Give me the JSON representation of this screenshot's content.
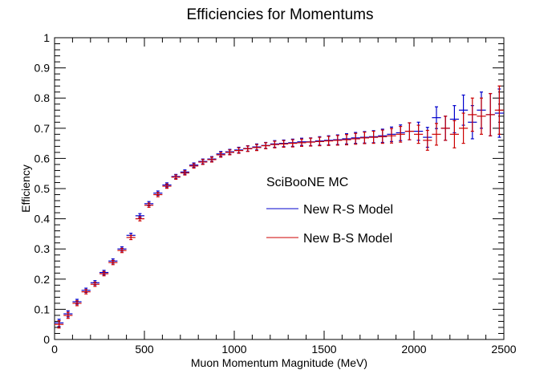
{
  "chart_data": {
    "type": "scatter",
    "title": "Efficiencies for Momentums",
    "xlabel": "Muon Momentum Magnitude (MeV)",
    "ylabel": "Efficiency",
    "xlim": [
      0,
      2500
    ],
    "ylim": [
      0,
      1
    ],
    "xticks": [
      0,
      500,
      1000,
      1500,
      2000,
      2500
    ],
    "yticks": [
      0,
      0.1,
      0.2,
      0.3,
      0.4,
      0.5,
      0.6,
      0.7,
      0.8,
      0.9,
      1
    ],
    "xtick_labels": [
      "0",
      "500",
      "1000",
      "1500",
      "2000",
      "2500"
    ],
    "ytick_labels": [
      "0",
      "0.1",
      "0.2",
      "0.3",
      "0.4",
      "0.5",
      "0.6",
      "0.7",
      "0.8",
      "0.9",
      "1"
    ],
    "bin_width": 50,
    "legend": {
      "header": "SciBooNE MC",
      "placement": "center-right",
      "entries": [
        "New R-S Model",
        "New B-S Model"
      ]
    },
    "colors": {
      "rs": "#0000cc",
      "bs": "#cc0000",
      "axis": "#000000"
    },
    "series": [
      {
        "name": "New R-S Model",
        "x": [
          25,
          75,
          125,
          175,
          225,
          275,
          325,
          375,
          425,
          475,
          525,
          575,
          625,
          675,
          725,
          775,
          825,
          875,
          925,
          975,
          1025,
          1075,
          1125,
          1175,
          1225,
          1275,
          1325,
          1375,
          1425,
          1475,
          1525,
          1575,
          1625,
          1675,
          1725,
          1775,
          1825,
          1875,
          1925,
          1975,
          2025,
          2075,
          2125,
          2175,
          2225,
          2275,
          2325,
          2375,
          2425,
          2475
        ],
        "values": [
          0.055,
          0.085,
          0.125,
          0.163,
          0.188,
          0.222,
          0.26,
          0.3,
          0.345,
          0.41,
          0.45,
          0.485,
          0.512,
          0.54,
          0.555,
          0.578,
          0.59,
          0.598,
          0.615,
          0.622,
          0.628,
          0.633,
          0.638,
          0.643,
          0.648,
          0.65,
          0.652,
          0.655,
          0.655,
          0.658,
          0.66,
          0.662,
          0.665,
          0.668,
          0.67,
          0.672,
          0.675,
          0.68,
          0.685,
          0.69,
          0.69,
          0.67,
          0.735,
          0.7,
          0.73,
          0.76,
          0.72,
          0.76,
          0.745,
          0.75
        ],
        "errors": [
          0.012,
          0.01,
          0.008,
          0.007,
          0.007,
          0.007,
          0.007,
          0.007,
          0.007,
          0.007,
          0.007,
          0.007,
          0.007,
          0.007,
          0.007,
          0.007,
          0.008,
          0.008,
          0.008,
          0.008,
          0.009,
          0.009,
          0.01,
          0.01,
          0.011,
          0.011,
          0.012,
          0.012,
          0.013,
          0.014,
          0.015,
          0.016,
          0.017,
          0.018,
          0.019,
          0.02,
          0.022,
          0.024,
          0.026,
          0.028,
          0.03,
          0.033,
          0.036,
          0.04,
          0.045,
          0.05,
          0.055,
          0.06,
          0.07,
          0.08
        ]
      },
      {
        "name": "New B-S Model",
        "x": [
          25,
          75,
          125,
          175,
          225,
          275,
          325,
          375,
          425,
          475,
          525,
          575,
          625,
          675,
          725,
          775,
          825,
          875,
          925,
          975,
          1025,
          1075,
          1125,
          1175,
          1225,
          1275,
          1325,
          1375,
          1425,
          1475,
          1525,
          1575,
          1625,
          1675,
          1725,
          1775,
          1825,
          1875,
          1925,
          1975,
          2025,
          2075,
          2125,
          2175,
          2225,
          2275,
          2325,
          2375,
          2425,
          2475
        ],
        "values": [
          0.05,
          0.08,
          0.12,
          0.158,
          0.183,
          0.218,
          0.255,
          0.295,
          0.338,
          0.4,
          0.445,
          0.48,
          0.508,
          0.538,
          0.552,
          0.575,
          0.588,
          0.596,
          0.612,
          0.62,
          0.626,
          0.632,
          0.636,
          0.642,
          0.646,
          0.648,
          0.65,
          0.652,
          0.654,
          0.656,
          0.658,
          0.66,
          0.662,
          0.665,
          0.668,
          0.67,
          0.672,
          0.675,
          0.68,
          0.69,
          0.68,
          0.66,
          0.68,
          0.7,
          0.68,
          0.7,
          0.745,
          0.74,
          0.745,
          0.76
        ],
        "errors": [
          0.012,
          0.01,
          0.008,
          0.007,
          0.007,
          0.007,
          0.007,
          0.007,
          0.007,
          0.007,
          0.007,
          0.007,
          0.007,
          0.007,
          0.007,
          0.007,
          0.008,
          0.008,
          0.008,
          0.008,
          0.009,
          0.009,
          0.01,
          0.01,
          0.011,
          0.011,
          0.012,
          0.012,
          0.013,
          0.014,
          0.015,
          0.016,
          0.017,
          0.018,
          0.019,
          0.02,
          0.022,
          0.024,
          0.026,
          0.028,
          0.03,
          0.033,
          0.036,
          0.04,
          0.045,
          0.05,
          0.055,
          0.06,
          0.07,
          0.08
        ]
      }
    ]
  }
}
